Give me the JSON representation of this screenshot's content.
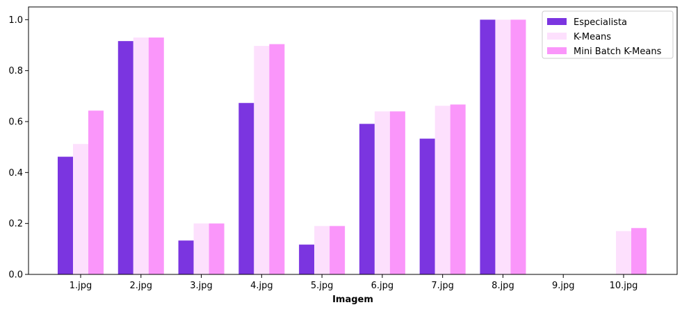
{
  "chart_data": {
    "type": "bar",
    "title": "",
    "xlabel": "Imagem",
    "ylabel": "",
    "categories": [
      "1.jpg",
      "2.jpg",
      "3.jpg",
      "4.jpg",
      "5.jpg",
      "6.jpg",
      "7.jpg",
      "8.jpg",
      "9.jpg",
      "10.jpg"
    ],
    "series": [
      {
        "name": "Especialista",
        "color": "#7b35e0",
        "values": [
          0.462,
          0.916,
          0.133,
          0.673,
          0.117,
          0.591,
          0.533,
          1.0,
          0.0,
          0.0
        ]
      },
      {
        "name": "K-Means",
        "color": "#fde0fd",
        "values": [
          0.512,
          0.93,
          0.2,
          0.897,
          0.19,
          0.64,
          0.662,
          1.0,
          0.0,
          0.17
        ]
      },
      {
        "name": "Mini Batch K-Means",
        "color": "#fa96fa",
        "values": [
          0.643,
          0.93,
          0.2,
          0.904,
          0.19,
          0.64,
          0.667,
          1.0,
          0.0,
          0.182
        ]
      }
    ],
    "ylim": [
      0,
      1.05
    ],
    "yticks": [
      0.0,
      0.2,
      0.4,
      0.6,
      0.8,
      1.0
    ],
    "ytick_labels": [
      "0.0",
      "0.2",
      "0.4",
      "0.6",
      "0.8",
      "1.0"
    ],
    "grid": false,
    "legend_position": "top-right"
  }
}
